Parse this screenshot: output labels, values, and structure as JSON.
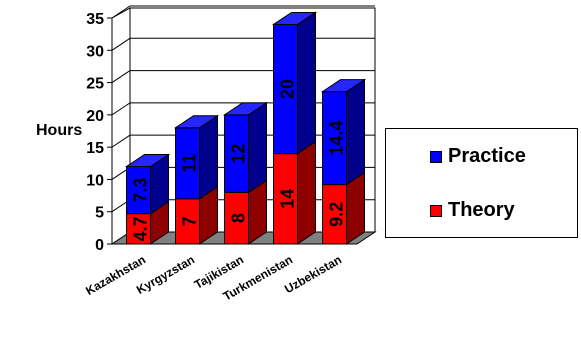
{
  "chart_data": {
    "type": "bar",
    "stacked": true,
    "three_d": true,
    "categories": [
      "Kazakhstan",
      "Kyrgyzstan",
      "Tajikistan",
      "Turkmenistan",
      "Uzbekistan"
    ],
    "series": [
      {
        "name": "Theory",
        "color": "#ff0000",
        "values": [
          4.7,
          7,
          8,
          14,
          9.2
        ]
      },
      {
        "name": "Practice",
        "color": "#0000ff",
        "values": [
          7.3,
          11,
          12,
          20,
          14.4
        ]
      }
    ],
    "data_labels": {
      "Theory": [
        "4.7",
        "7",
        "8",
        "14",
        "9.2"
      ],
      "Practice": [
        "7.3",
        "11",
        "12",
        "20",
        "14.4"
      ]
    },
    "ylabel": "Hours",
    "ylim": [
      0,
      35
    ],
    "yticks": [
      "0",
      "5",
      "10",
      "15",
      "20",
      "25",
      "30",
      "35"
    ],
    "grid": true,
    "legend_position": "right"
  }
}
